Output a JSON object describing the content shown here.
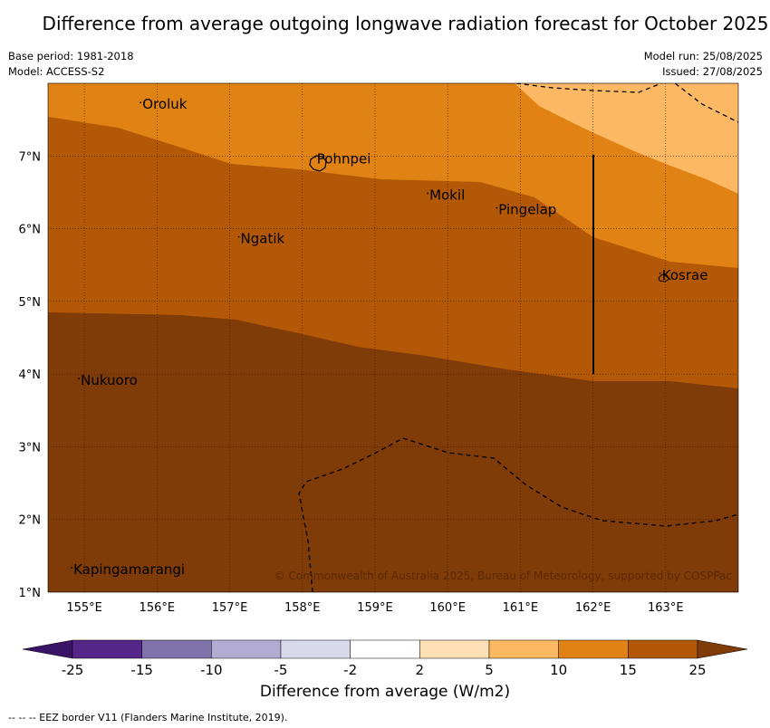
{
  "title": "Difference from average outgoing longwave radiation forecast for October 2025",
  "meta_left": {
    "base_period": "Base period: 1981-2018",
    "model": "Model: ACCESS-S2"
  },
  "meta_right": {
    "model_run": "Model run: 25/08/2025",
    "issued": "Issued: 27/08/2025"
  },
  "map": {
    "lon_range": [
      154.5,
      164.0
    ],
    "lat_range": [
      1.0,
      8.0
    ],
    "lon_ticks": [
      "155°E",
      "156°E",
      "157°E",
      "158°E",
      "159°E",
      "160°E",
      "161°E",
      "162°E",
      "163°E"
    ],
    "lat_ticks": [
      "1°N",
      "2°N",
      "3°N",
      "4°N",
      "5°N",
      "6°N",
      "7°N"
    ],
    "gridlines": true,
    "islands": [
      {
        "name": "Oroluk",
        "lon": 155.8,
        "lat": 7.65
      },
      {
        "name": "Pohnpei",
        "lon": 158.2,
        "lat": 6.9
      },
      {
        "name": "Mokil",
        "lon": 159.75,
        "lat": 6.4
      },
      {
        "name": "Pingelap",
        "lon": 160.7,
        "lat": 6.2
      },
      {
        "name": "Ngatik",
        "lon": 157.15,
        "lat": 5.8
      },
      {
        "name": "Kosrae",
        "lon": 162.95,
        "lat": 5.3
      },
      {
        "name": "Nukuoro",
        "lon": 154.95,
        "lat": 3.85
      },
      {
        "name": "Kapingamarangi",
        "lon": 154.85,
        "lat": 1.25
      }
    ],
    "copyright": "© Commonwealth of Australia 2025, Bureau of Meteorology, supported by COSPPac"
  },
  "colorbar": {
    "ticks": [
      "-25",
      "-15",
      "-10",
      "-5",
      "-2",
      "2",
      "5",
      "10",
      "15",
      "25"
    ],
    "colors": [
      "#3b1467",
      "#542788",
      "#8073ac",
      "#b2abd2",
      "#d8daeb",
      "#ffffff",
      "#fee0b6",
      "#fdb863",
      "#e08214",
      "#b35806",
      "#7f3b08"
    ],
    "label": "Difference from average (W/m2)"
  },
  "footnote": "--  --  -- EEZ border V11 (Flanders Marine Institute, 2019)."
}
